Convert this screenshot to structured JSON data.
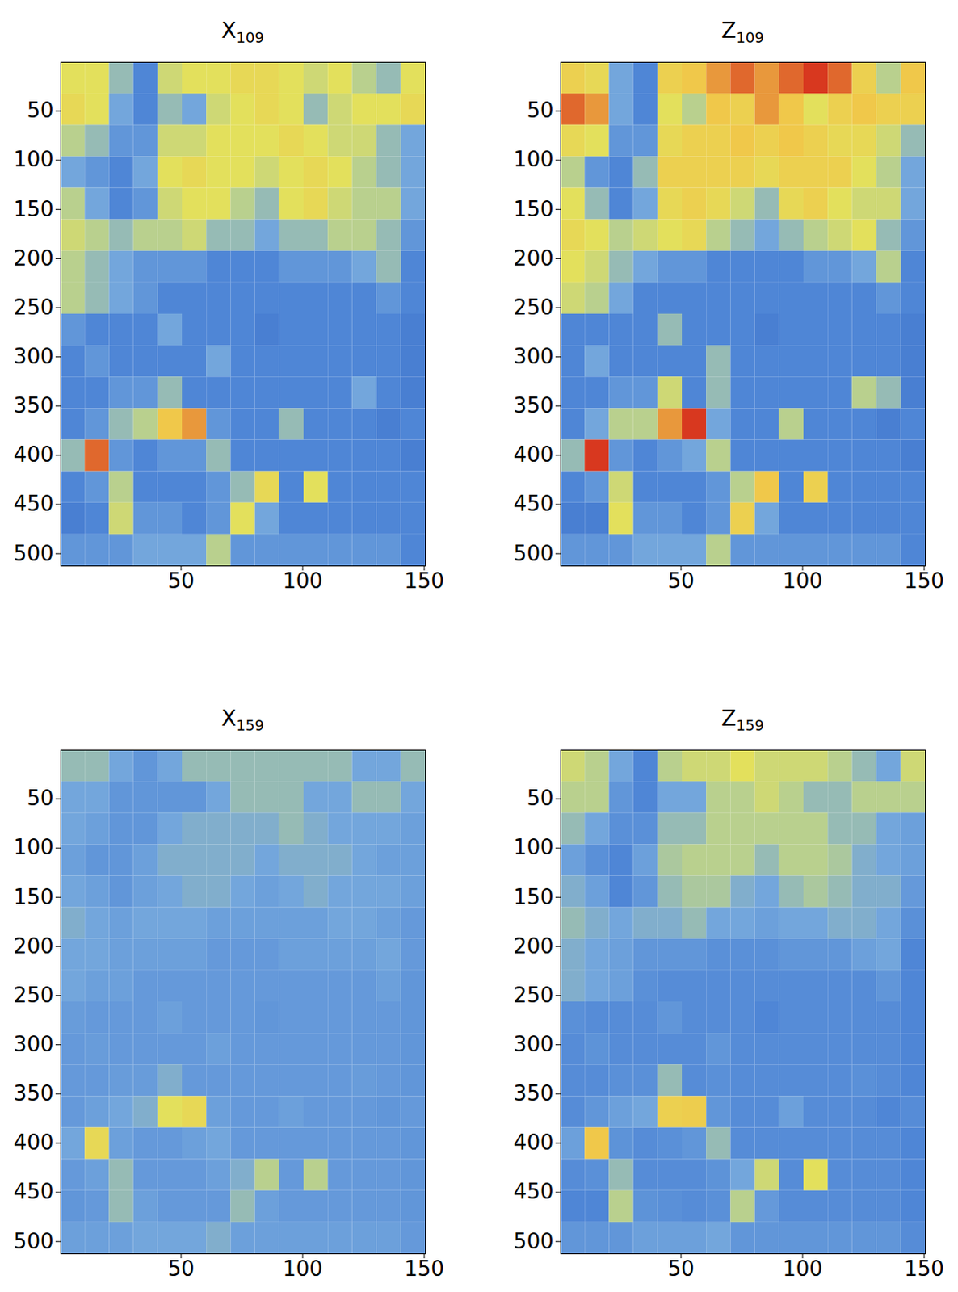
{
  "chart_data": [
    {
      "type": "heatmap",
      "title": "X109",
      "xlim": [
        0.5,
        150.5
      ],
      "ylim": [
        512.5,
        0.5
      ],
      "xticks": [
        50,
        100,
        150
      ],
      "yticks": [
        50,
        100,
        150,
        200,
        250,
        300,
        350,
        400,
        450,
        500
      ],
      "zlim": [
        0,
        1
      ],
      "cells": [
        [
          0.6,
          0.6,
          0.45,
          0.3,
          0.55,
          0.6,
          0.6,
          0.65,
          0.65,
          0.6,
          0.55,
          0.6,
          0.5,
          0.45,
          0.6
        ],
        [
          0.65,
          0.6,
          0.4,
          0.3,
          0.45,
          0.4,
          0.55,
          0.6,
          0.65,
          0.6,
          0.45,
          0.55,
          0.6,
          0.6,
          0.65
        ],
        [
          0.5,
          0.45,
          0.35,
          0.35,
          0.55,
          0.55,
          0.6,
          0.6,
          0.6,
          0.65,
          0.6,
          0.55,
          0.55,
          0.45,
          0.4
        ],
        [
          0.4,
          0.35,
          0.3,
          0.4,
          0.6,
          0.65,
          0.6,
          0.6,
          0.55,
          0.6,
          0.65,
          0.6,
          0.5,
          0.45,
          0.4
        ],
        [
          0.5,
          0.4,
          0.3,
          0.35,
          0.55,
          0.6,
          0.6,
          0.5,
          0.45,
          0.6,
          0.65,
          0.55,
          0.5,
          0.5,
          0.4
        ],
        [
          0.55,
          0.5,
          0.45,
          0.5,
          0.5,
          0.55,
          0.45,
          0.45,
          0.4,
          0.45,
          0.45,
          0.5,
          0.5,
          0.45,
          0.35
        ],
        [
          0.5,
          0.45,
          0.4,
          0.35,
          0.35,
          0.35,
          0.3,
          0.3,
          0.3,
          0.35,
          0.35,
          0.35,
          0.4,
          0.45,
          0.3
        ],
        [
          0.5,
          0.45,
          0.4,
          0.35,
          0.3,
          0.3,
          0.3,
          0.3,
          0.3,
          0.3,
          0.3,
          0.3,
          0.3,
          0.35,
          0.3
        ],
        [
          0.35,
          0.3,
          0.3,
          0.3,
          0.4,
          0.3,
          0.3,
          0.3,
          0.25,
          0.3,
          0.3,
          0.3,
          0.3,
          0.3,
          0.25
        ],
        [
          0.3,
          0.35,
          0.3,
          0.3,
          0.3,
          0.3,
          0.4,
          0.3,
          0.3,
          0.3,
          0.3,
          0.3,
          0.3,
          0.3,
          0.25
        ],
        [
          0.3,
          0.3,
          0.35,
          0.35,
          0.45,
          0.3,
          0.3,
          0.3,
          0.3,
          0.3,
          0.3,
          0.3,
          0.4,
          0.3,
          0.25
        ],
        [
          0.3,
          0.35,
          0.45,
          0.5,
          0.75,
          0.8,
          0.35,
          0.3,
          0.3,
          0.45,
          0.3,
          0.3,
          0.3,
          0.25,
          0.3
        ],
        [
          0.45,
          0.85,
          0.35,
          0.3,
          0.35,
          0.35,
          0.45,
          0.3,
          0.3,
          0.3,
          0.3,
          0.3,
          0.3,
          0.3,
          0.25
        ],
        [
          0.3,
          0.35,
          0.5,
          0.3,
          0.3,
          0.3,
          0.35,
          0.45,
          0.65,
          0.3,
          0.6,
          0.3,
          0.3,
          0.3,
          0.3
        ],
        [
          0.25,
          0.3,
          0.55,
          0.35,
          0.35,
          0.3,
          0.35,
          0.6,
          0.4,
          0.3,
          0.3,
          0.3,
          0.3,
          0.3,
          0.3
        ],
        [
          0.35,
          0.35,
          0.35,
          0.4,
          0.4,
          0.4,
          0.5,
          0.35,
          0.35,
          0.35,
          0.35,
          0.35,
          0.35,
          0.35,
          0.3
        ]
      ]
    },
    {
      "type": "heatmap",
      "title": "Z109",
      "xlim": [
        0.5,
        150.5
      ],
      "ylim": [
        512.5,
        0.5
      ],
      "xticks": [
        50,
        100,
        150
      ],
      "yticks": [
        50,
        100,
        150,
        200,
        250,
        300,
        350,
        400,
        450,
        500
      ],
      "zlim": [
        0,
        1
      ],
      "cells": [
        [
          0.7,
          0.65,
          0.4,
          0.3,
          0.7,
          0.75,
          0.8,
          0.85,
          0.8,
          0.85,
          0.9,
          0.85,
          0.7,
          0.5,
          0.75
        ],
        [
          0.85,
          0.8,
          0.4,
          0.3,
          0.6,
          0.5,
          0.75,
          0.7,
          0.8,
          0.75,
          0.6,
          0.7,
          0.75,
          0.7,
          0.7
        ],
        [
          0.65,
          0.6,
          0.35,
          0.35,
          0.65,
          0.7,
          0.7,
          0.75,
          0.7,
          0.75,
          0.7,
          0.65,
          0.65,
          0.55,
          0.45
        ],
        [
          0.5,
          0.35,
          0.3,
          0.45,
          0.7,
          0.7,
          0.7,
          0.7,
          0.65,
          0.7,
          0.7,
          0.7,
          0.6,
          0.5,
          0.4
        ],
        [
          0.6,
          0.45,
          0.3,
          0.4,
          0.65,
          0.7,
          0.65,
          0.55,
          0.45,
          0.65,
          0.7,
          0.6,
          0.55,
          0.55,
          0.4
        ],
        [
          0.65,
          0.6,
          0.5,
          0.55,
          0.6,
          0.65,
          0.5,
          0.45,
          0.4,
          0.45,
          0.5,
          0.55,
          0.6,
          0.45,
          0.35
        ],
        [
          0.6,
          0.55,
          0.45,
          0.4,
          0.35,
          0.35,
          0.3,
          0.3,
          0.3,
          0.3,
          0.35,
          0.35,
          0.4,
          0.5,
          0.3
        ],
        [
          0.55,
          0.5,
          0.4,
          0.3,
          0.3,
          0.3,
          0.3,
          0.3,
          0.3,
          0.3,
          0.3,
          0.3,
          0.3,
          0.35,
          0.3
        ],
        [
          0.3,
          0.3,
          0.3,
          0.3,
          0.45,
          0.3,
          0.3,
          0.3,
          0.25,
          0.3,
          0.3,
          0.3,
          0.3,
          0.3,
          0.25
        ],
        [
          0.3,
          0.4,
          0.3,
          0.3,
          0.3,
          0.3,
          0.45,
          0.3,
          0.3,
          0.3,
          0.3,
          0.3,
          0.3,
          0.3,
          0.25
        ],
        [
          0.3,
          0.3,
          0.35,
          0.35,
          0.55,
          0.3,
          0.45,
          0.3,
          0.3,
          0.3,
          0.3,
          0.3,
          0.5,
          0.45,
          0.25
        ],
        [
          0.3,
          0.4,
          0.5,
          0.5,
          0.8,
          0.9,
          0.4,
          0.3,
          0.3,
          0.5,
          0.3,
          0.3,
          0.3,
          0.25,
          0.3
        ],
        [
          0.45,
          0.9,
          0.35,
          0.3,
          0.35,
          0.4,
          0.5,
          0.3,
          0.3,
          0.3,
          0.3,
          0.3,
          0.3,
          0.3,
          0.25
        ],
        [
          0.3,
          0.35,
          0.55,
          0.3,
          0.3,
          0.3,
          0.35,
          0.5,
          0.75,
          0.3,
          0.7,
          0.3,
          0.3,
          0.3,
          0.3
        ],
        [
          0.25,
          0.25,
          0.6,
          0.35,
          0.35,
          0.3,
          0.35,
          0.7,
          0.4,
          0.3,
          0.3,
          0.3,
          0.3,
          0.3,
          0.3
        ],
        [
          0.35,
          0.35,
          0.35,
          0.4,
          0.4,
          0.4,
          0.5,
          0.35,
          0.35,
          0.35,
          0.35,
          0.35,
          0.35,
          0.35,
          0.3
        ]
      ]
    },
    {
      "type": "heatmap",
      "title": "X159",
      "xlim": [
        0.5,
        150.5
      ],
      "ylim": [
        512.5,
        0.5
      ],
      "xticks": [
        50,
        100,
        150
      ],
      "yticks": [
        50,
        100,
        150,
        200,
        250,
        300,
        350,
        400,
        450,
        500
      ],
      "zlim": [
        0,
        1
      ],
      "cells": [
        [
          0.45,
          0.45,
          0.4,
          0.35,
          0.4,
          0.45,
          0.45,
          0.45,
          0.45,
          0.45,
          0.45,
          0.45,
          0.4,
          0.4,
          0.45
        ],
        [
          0.4,
          0.4,
          0.35,
          0.35,
          0.35,
          0.35,
          0.4,
          0.45,
          0.45,
          0.45,
          0.4,
          0.4,
          0.45,
          0.45,
          0.4
        ],
        [
          0.4,
          0.38,
          0.35,
          0.35,
          0.4,
          0.42,
          0.42,
          0.42,
          0.42,
          0.45,
          0.42,
          0.4,
          0.4,
          0.4,
          0.38
        ],
        [
          0.38,
          0.35,
          0.35,
          0.38,
          0.42,
          0.42,
          0.42,
          0.42,
          0.4,
          0.42,
          0.42,
          0.42,
          0.4,
          0.38,
          0.38
        ],
        [
          0.4,
          0.38,
          0.35,
          0.38,
          0.4,
          0.42,
          0.42,
          0.4,
          0.38,
          0.4,
          0.42,
          0.4,
          0.4,
          0.4,
          0.38
        ],
        [
          0.42,
          0.4,
          0.38,
          0.4,
          0.4,
          0.4,
          0.38,
          0.38,
          0.38,
          0.38,
          0.38,
          0.4,
          0.4,
          0.38,
          0.36
        ],
        [
          0.4,
          0.4,
          0.38,
          0.38,
          0.38,
          0.38,
          0.36,
          0.36,
          0.36,
          0.38,
          0.38,
          0.38,
          0.38,
          0.4,
          0.36
        ],
        [
          0.4,
          0.38,
          0.38,
          0.36,
          0.36,
          0.36,
          0.36,
          0.36,
          0.36,
          0.36,
          0.36,
          0.36,
          0.36,
          0.38,
          0.35
        ],
        [
          0.37,
          0.36,
          0.36,
          0.36,
          0.38,
          0.36,
          0.36,
          0.36,
          0.35,
          0.36,
          0.36,
          0.36,
          0.36,
          0.36,
          0.35
        ],
        [
          0.36,
          0.37,
          0.36,
          0.36,
          0.36,
          0.36,
          0.38,
          0.36,
          0.36,
          0.36,
          0.36,
          0.36,
          0.36,
          0.36,
          0.35
        ],
        [
          0.36,
          0.36,
          0.37,
          0.37,
          0.42,
          0.36,
          0.36,
          0.36,
          0.36,
          0.36,
          0.36,
          0.36,
          0.37,
          0.36,
          0.35
        ],
        [
          0.36,
          0.38,
          0.4,
          0.42,
          0.6,
          0.65,
          0.38,
          0.36,
          0.36,
          0.38,
          0.36,
          0.36,
          0.36,
          0.35,
          0.36
        ],
        [
          0.4,
          0.65,
          0.38,
          0.36,
          0.36,
          0.38,
          0.4,
          0.36,
          0.36,
          0.36,
          0.36,
          0.36,
          0.36,
          0.36,
          0.35
        ],
        [
          0.36,
          0.38,
          0.45,
          0.36,
          0.36,
          0.36,
          0.38,
          0.42,
          0.5,
          0.36,
          0.5,
          0.36,
          0.36,
          0.36,
          0.35
        ],
        [
          0.35,
          0.36,
          0.45,
          0.38,
          0.36,
          0.36,
          0.36,
          0.45,
          0.38,
          0.36,
          0.36,
          0.36,
          0.36,
          0.36,
          0.35
        ],
        [
          0.38,
          0.38,
          0.38,
          0.4,
          0.4,
          0.4,
          0.42,
          0.38,
          0.38,
          0.38,
          0.38,
          0.38,
          0.38,
          0.38,
          0.36
        ]
      ]
    },
    {
      "type": "heatmap",
      "title": "Z159",
      "xlim": [
        0.5,
        150.5
      ],
      "ylim": [
        512.5,
        0.5
      ],
      "xticks": [
        50,
        100,
        150
      ],
      "yticks": [
        50,
        100,
        150,
        200,
        250,
        300,
        350,
        400,
        450,
        500
      ],
      "zlim": [
        0,
        1
      ],
      "cells": [
        [
          0.55,
          0.5,
          0.4,
          0.3,
          0.5,
          0.55,
          0.55,
          0.6,
          0.55,
          0.55,
          0.55,
          0.5,
          0.45,
          0.4,
          0.55
        ],
        [
          0.5,
          0.5,
          0.35,
          0.3,
          0.4,
          0.4,
          0.5,
          0.5,
          0.55,
          0.5,
          0.45,
          0.45,
          0.5,
          0.5,
          0.5
        ],
        [
          0.45,
          0.4,
          0.33,
          0.33,
          0.45,
          0.45,
          0.5,
          0.5,
          0.5,
          0.5,
          0.5,
          0.45,
          0.45,
          0.4,
          0.38
        ],
        [
          0.38,
          0.33,
          0.3,
          0.38,
          0.48,
          0.5,
          0.5,
          0.5,
          0.45,
          0.5,
          0.5,
          0.48,
          0.42,
          0.4,
          0.38
        ],
        [
          0.42,
          0.38,
          0.3,
          0.35,
          0.45,
          0.48,
          0.48,
          0.42,
          0.4,
          0.45,
          0.48,
          0.45,
          0.42,
          0.42,
          0.36
        ],
        [
          0.45,
          0.42,
          0.4,
          0.42,
          0.42,
          0.45,
          0.4,
          0.4,
          0.38,
          0.4,
          0.4,
          0.42,
          0.42,
          0.4,
          0.33
        ],
        [
          0.42,
          0.4,
          0.38,
          0.35,
          0.35,
          0.35,
          0.33,
          0.33,
          0.33,
          0.35,
          0.35,
          0.35,
          0.38,
          0.4,
          0.3
        ],
        [
          0.42,
          0.4,
          0.38,
          0.33,
          0.32,
          0.32,
          0.32,
          0.32,
          0.32,
          0.32,
          0.32,
          0.32,
          0.32,
          0.35,
          0.3
        ],
        [
          0.33,
          0.32,
          0.32,
          0.32,
          0.35,
          0.32,
          0.32,
          0.32,
          0.3,
          0.32,
          0.32,
          0.32,
          0.32,
          0.32,
          0.3
        ],
        [
          0.32,
          0.34,
          0.32,
          0.32,
          0.32,
          0.32,
          0.35,
          0.32,
          0.32,
          0.32,
          0.32,
          0.32,
          0.32,
          0.32,
          0.3
        ],
        [
          0.32,
          0.32,
          0.33,
          0.33,
          0.45,
          0.32,
          0.33,
          0.32,
          0.32,
          0.32,
          0.32,
          0.32,
          0.33,
          0.32,
          0.3
        ],
        [
          0.32,
          0.35,
          0.38,
          0.4,
          0.7,
          0.72,
          0.35,
          0.32,
          0.32,
          0.38,
          0.32,
          0.32,
          0.32,
          0.3,
          0.32
        ],
        [
          0.38,
          0.75,
          0.34,
          0.32,
          0.33,
          0.35,
          0.45,
          0.32,
          0.32,
          0.32,
          0.32,
          0.32,
          0.32,
          0.32,
          0.3
        ],
        [
          0.32,
          0.33,
          0.45,
          0.32,
          0.32,
          0.32,
          0.34,
          0.4,
          0.55,
          0.32,
          0.6,
          0.32,
          0.32,
          0.32,
          0.3
        ],
        [
          0.3,
          0.3,
          0.5,
          0.34,
          0.33,
          0.32,
          0.33,
          0.5,
          0.36,
          0.32,
          0.32,
          0.32,
          0.32,
          0.32,
          0.3
        ],
        [
          0.35,
          0.35,
          0.35,
          0.38,
          0.38,
          0.38,
          0.4,
          0.35,
          0.35,
          0.35,
          0.35,
          0.35,
          0.35,
          0.35,
          0.32
        ]
      ]
    }
  ]
}
